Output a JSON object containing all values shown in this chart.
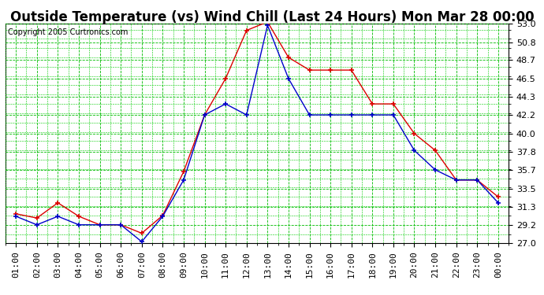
{
  "title": "Outside Temperature (vs) Wind Chill (Last 24 Hours) Mon Mar 28 00:00",
  "copyright": "Copyright 2005 Curtronics.com",
  "x_labels": [
    "01:00",
    "02:00",
    "03:00",
    "04:00",
    "05:00",
    "06:00",
    "07:00",
    "08:00",
    "09:00",
    "10:00",
    "11:00",
    "12:00",
    "13:00",
    "14:00",
    "15:00",
    "16:00",
    "17:00",
    "18:00",
    "19:00",
    "20:00",
    "21:00",
    "22:00",
    "23:00",
    "00:00"
  ],
  "y_min": 27.0,
  "y_max": 53.0,
  "y_ticks": [
    27.0,
    29.2,
    31.3,
    33.5,
    35.7,
    37.8,
    40.0,
    42.2,
    44.3,
    46.5,
    48.7,
    50.8,
    53.0
  ],
  "outside_temp": [
    30.5,
    30.0,
    31.8,
    30.2,
    29.2,
    29.2,
    28.2,
    30.3,
    35.5,
    42.2,
    46.5,
    52.2,
    53.2,
    49.0,
    47.5,
    47.5,
    47.5,
    43.5,
    43.5,
    40.0,
    38.0,
    34.5,
    34.5,
    32.5
  ],
  "wind_chill": [
    30.2,
    29.2,
    30.2,
    29.2,
    29.2,
    29.2,
    27.2,
    30.2,
    34.5,
    42.2,
    43.5,
    42.2,
    52.8,
    46.5,
    42.2,
    42.2,
    42.2,
    42.2,
    42.2,
    38.0,
    35.7,
    34.5,
    34.5,
    31.8
  ],
  "temp_color": "#dd0000",
  "chill_color": "#0000cc",
  "bg_color": "#ffffff",
  "grid_major_color": "#00bb00",
  "grid_minor_color": "#00cc00",
  "title_fontsize": 12,
  "copyright_fontsize": 7,
  "tick_fontsize": 8,
  "marker": "+"
}
